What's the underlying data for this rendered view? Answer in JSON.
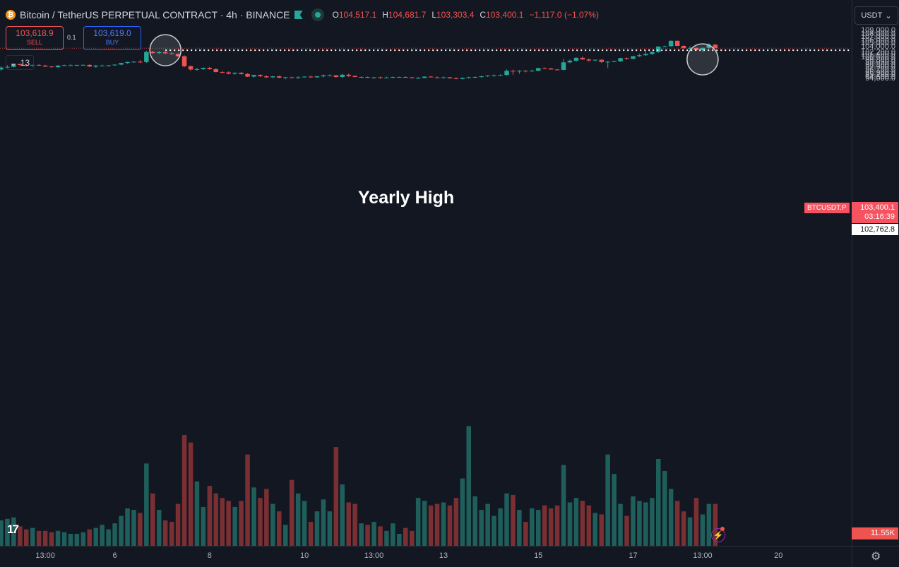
{
  "header": {
    "coin_symbol": "₿",
    "title": "Bitcoin / TetherUS PERPETUAL CONTRACT · 4h · BINANCE",
    "ohlc": [
      {
        "key": "O",
        "value": "104,517.1"
      },
      {
        "key": "H",
        "value": "104,681.7"
      },
      {
        "key": "L",
        "value": "103,303.4"
      },
      {
        "key": "C",
        "value": "103,400.1"
      }
    ],
    "change": "−1,117.0 (−1.07%)"
  },
  "trade": {
    "sell_price": "103,618.9",
    "sell_label": "SELL",
    "quantity": "0.1",
    "buy_price": "103,619.0",
    "buy_label": "BUY"
  },
  "indicators_toggle": {
    "chevron": "⌄",
    "count": "13"
  },
  "currency_select": {
    "label": "USDT",
    "chevron": "⌄"
  },
  "price_axis": {
    "ticks": [
      "109,000.0",
      "108,000.0",
      "107,000.0",
      "106,000.0",
      "105,000.0",
      "104,000.0",
      "102,200.0",
      "101,400.0",
      "100,600.0",
      "99,800.0",
      "99,050.0",
      "98,300.0",
      "97,500.0",
      "96,700.0",
      "95,900.0",
      "95,200.0",
      "94,600.0",
      "94,000.0"
    ],
    "last_price": "103,400.1",
    "countdown": "03:16:39",
    "symbol_tag": "BTCUSDT.P",
    "level_price": "102,762.8",
    "volume_value": "11.55K"
  },
  "time_axis": {
    "labels": [
      "13:00",
      "6",
      "8",
      "10",
      "13:00",
      "13",
      "15",
      "17",
      "13:00",
      "20"
    ]
  },
  "annotation": {
    "text": "Yearly High"
  },
  "logo": {
    "text": "17"
  },
  "icons": {
    "alert": "⚡",
    "settings": "⚙"
  },
  "colors": {
    "up": "#26a69a",
    "down": "#ef5350",
    "volume_up": "#1f5f5b",
    "volume_down": "#7a2f33",
    "background": "#131722"
  },
  "chart_data": {
    "type": "candlestick",
    "level_line": 102762.8,
    "last_price": 103400.1,
    "candles": [
      {
        "o": 96800,
        "h": 97800,
        "l": 96400,
        "c": 97400,
        "v": 1700
      },
      {
        "o": 97400,
        "h": 98100,
        "l": 97200,
        "c": 97600,
        "v": 1800
      },
      {
        "o": 97600,
        "h": 98600,
        "l": 97400,
        "c": 98500,
        "v": 1900
      },
      {
        "o": 98500,
        "h": 98600,
        "l": 97900,
        "c": 98200,
        "v": 1300
      },
      {
        "o": 98200,
        "h": 98400,
        "l": 97700,
        "c": 98100,
        "v": 1100
      },
      {
        "o": 98100,
        "h": 98300,
        "l": 97700,
        "c": 98200,
        "v": 1200
      },
      {
        "o": 98200,
        "h": 98400,
        "l": 97900,
        "c": 98000,
        "v": 1000
      },
      {
        "o": 98000,
        "h": 98200,
        "l": 97600,
        "c": 97700,
        "v": 1000
      },
      {
        "o": 97700,
        "h": 97900,
        "l": 97400,
        "c": 97500,
        "v": 900
      },
      {
        "o": 97500,
        "h": 98100,
        "l": 97300,
        "c": 98000,
        "v": 1000
      },
      {
        "o": 98000,
        "h": 98300,
        "l": 97800,
        "c": 98100,
        "v": 900
      },
      {
        "o": 98100,
        "h": 98500,
        "l": 97900,
        "c": 98100,
        "v": 800
      },
      {
        "o": 98100,
        "h": 98200,
        "l": 97800,
        "c": 98200,
        "v": 800
      },
      {
        "o": 98200,
        "h": 98400,
        "l": 98000,
        "c": 98200,
        "v": 900
      },
      {
        "o": 98200,
        "h": 98400,
        "l": 97500,
        "c": 97700,
        "v": 1100
      },
      {
        "o": 97700,
        "h": 98200,
        "l": 97300,
        "c": 98000,
        "v": 1200
      },
      {
        "o": 98000,
        "h": 98300,
        "l": 97800,
        "c": 98000,
        "v": 1400
      },
      {
        "o": 98000,
        "h": 98100,
        "l": 97700,
        "c": 98100,
        "v": 1100
      },
      {
        "o": 98100,
        "h": 98400,
        "l": 97900,
        "c": 98300,
        "v": 1500
      },
      {
        "o": 98300,
        "h": 98900,
        "l": 98100,
        "c": 98800,
        "v": 2000
      },
      {
        "o": 98800,
        "h": 99200,
        "l": 98600,
        "c": 99100,
        "v": 2500
      },
      {
        "o": 99100,
        "h": 99400,
        "l": 98900,
        "c": 99200,
        "v": 2400
      },
      {
        "o": 99200,
        "h": 99700,
        "l": 98800,
        "c": 99100,
        "v": 2200
      },
      {
        "o": 99100,
        "h": 102600,
        "l": 98800,
        "c": 102200,
        "v": 5500
      },
      {
        "o": 102200,
        "h": 102600,
        "l": 101600,
        "c": 101900,
        "v": 3500
      },
      {
        "o": 101900,
        "h": 102500,
        "l": 101600,
        "c": 102100,
        "v": 2400
      },
      {
        "o": 102100,
        "h": 102763,
        "l": 101600,
        "c": 101800,
        "v": 1700
      },
      {
        "o": 101800,
        "h": 102100,
        "l": 101400,
        "c": 101600,
        "v": 1600
      },
      {
        "o": 101600,
        "h": 101800,
        "l": 100700,
        "c": 100900,
        "v": 2800
      },
      {
        "o": 100900,
        "h": 101200,
        "l": 97500,
        "c": 97800,
        "v": 7400
      },
      {
        "o": 97800,
        "h": 98000,
        "l": 96400,
        "c": 96800,
        "v": 6900
      },
      {
        "o": 96800,
        "h": 97300,
        "l": 96400,
        "c": 96900,
        "v": 4300
      },
      {
        "o": 96900,
        "h": 97400,
        "l": 96600,
        "c": 97300,
        "v": 2600
      },
      {
        "o": 97300,
        "h": 97600,
        "l": 96700,
        "c": 96900,
        "v": 4000
      },
      {
        "o": 96900,
        "h": 97100,
        "l": 95900,
        "c": 96000,
        "v": 3500
      },
      {
        "o": 96000,
        "h": 96400,
        "l": 95600,
        "c": 95900,
        "v": 3200
      },
      {
        "o": 95900,
        "h": 96200,
        "l": 95300,
        "c": 95500,
        "v": 3000
      },
      {
        "o": 95500,
        "h": 95900,
        "l": 95200,
        "c": 95800,
        "v": 2600
      },
      {
        "o": 95800,
        "h": 96000,
        "l": 95200,
        "c": 95400,
        "v": 3000
      },
      {
        "o": 95400,
        "h": 95600,
        "l": 94500,
        "c": 94600,
        "v": 6100
      },
      {
        "o": 94600,
        "h": 95200,
        "l": 94300,
        "c": 95100,
        "v": 3900
      },
      {
        "o": 95100,
        "h": 95300,
        "l": 94500,
        "c": 94700,
        "v": 3200
      },
      {
        "o": 94700,
        "h": 95000,
        "l": 94200,
        "c": 94400,
        "v": 3800
      },
      {
        "o": 94400,
        "h": 94800,
        "l": 94100,
        "c": 94700,
        "v": 2800
      },
      {
        "o": 94700,
        "h": 94900,
        "l": 94100,
        "c": 94300,
        "v": 2300
      },
      {
        "o": 94300,
        "h": 94500,
        "l": 93800,
        "c": 94400,
        "v": 1400
      },
      {
        "o": 94400,
        "h": 94600,
        "l": 94100,
        "c": 94300,
        "v": 4400
      },
      {
        "o": 94300,
        "h": 94700,
        "l": 94000,
        "c": 94400,
        "v": 3500
      },
      {
        "o": 94400,
        "h": 94700,
        "l": 94300,
        "c": 94600,
        "v": 3000
      },
      {
        "o": 94600,
        "h": 94900,
        "l": 94200,
        "c": 94400,
        "v": 1600
      },
      {
        "o": 94400,
        "h": 94800,
        "l": 94200,
        "c": 94700,
        "v": 2300
      },
      {
        "o": 94700,
        "h": 95300,
        "l": 94300,
        "c": 95000,
        "v": 3100
      },
      {
        "o": 95000,
        "h": 95300,
        "l": 94800,
        "c": 95000,
        "v": 2300
      },
      {
        "o": 95000,
        "h": 95100,
        "l": 94300,
        "c": 94500,
        "v": 6600
      },
      {
        "o": 94500,
        "h": 95500,
        "l": 94200,
        "c": 95200,
        "v": 4100
      },
      {
        "o": 95200,
        "h": 95500,
        "l": 94500,
        "c": 94800,
        "v": 2900
      },
      {
        "o": 94800,
        "h": 95000,
        "l": 94400,
        "c": 94500,
        "v": 2800
      },
      {
        "o": 94500,
        "h": 94700,
        "l": 94200,
        "c": 94500,
        "v": 1500
      },
      {
        "o": 94500,
        "h": 94600,
        "l": 94200,
        "c": 94300,
        "v": 1400
      },
      {
        "o": 94300,
        "h": 94500,
        "l": 93900,
        "c": 94400,
        "v": 1600
      },
      {
        "o": 94400,
        "h": 94600,
        "l": 94000,
        "c": 94200,
        "v": 1300
      },
      {
        "o": 94200,
        "h": 94600,
        "l": 94200,
        "c": 94300,
        "v": 1000
      },
      {
        "o": 94300,
        "h": 94600,
        "l": 94100,
        "c": 94500,
        "v": 1500
      },
      {
        "o": 94500,
        "h": 94600,
        "l": 94300,
        "c": 94500,
        "v": 800
      },
      {
        "o": 94500,
        "h": 94700,
        "l": 94300,
        "c": 94400,
        "v": 1200
      },
      {
        "o": 94400,
        "h": 94500,
        "l": 94000,
        "c": 94200,
        "v": 1000
      },
      {
        "o": 94200,
        "h": 94500,
        "l": 94000,
        "c": 94200,
        "v": 3200
      },
      {
        "o": 94200,
        "h": 94700,
        "l": 94100,
        "c": 94600,
        "v": 3000
      },
      {
        "o": 94600,
        "h": 94800,
        "l": 94300,
        "c": 94400,
        "v": 2700
      },
      {
        "o": 94400,
        "h": 94600,
        "l": 94100,
        "c": 94300,
        "v": 2800
      },
      {
        "o": 94300,
        "h": 94600,
        "l": 94000,
        "c": 94400,
        "v": 2900
      },
      {
        "o": 94400,
        "h": 94500,
        "l": 94000,
        "c": 94100,
        "v": 2700
      },
      {
        "o": 94100,
        "h": 94400,
        "l": 93800,
        "c": 93900,
        "v": 3200
      },
      {
        "o": 93900,
        "h": 94400,
        "l": 93700,
        "c": 94200,
        "v": 4500
      },
      {
        "o": 94200,
        "h": 94600,
        "l": 94000,
        "c": 94400,
        "v": 8000
      },
      {
        "o": 94400,
        "h": 94700,
        "l": 94200,
        "c": 94500,
        "v": 3300
      },
      {
        "o": 94500,
        "h": 94900,
        "l": 94200,
        "c": 94700,
        "v": 2400
      },
      {
        "o": 94700,
        "h": 95000,
        "l": 94500,
        "c": 94900,
        "v": 2800
      },
      {
        "o": 94900,
        "h": 95300,
        "l": 94600,
        "c": 95000,
        "v": 2000
      },
      {
        "o": 95000,
        "h": 95300,
        "l": 94800,
        "c": 95100,
        "v": 2500
      },
      {
        "o": 95100,
        "h": 96800,
        "l": 94900,
        "c": 96400,
        "v": 3500
      },
      {
        "o": 96400,
        "h": 96700,
        "l": 95200,
        "c": 96300,
        "v": 3400
      },
      {
        "o": 96300,
        "h": 96600,
        "l": 95500,
        "c": 96400,
        "v": 2400
      },
      {
        "o": 96400,
        "h": 96600,
        "l": 95900,
        "c": 96300,
        "v": 1600
      },
      {
        "o": 96300,
        "h": 96700,
        "l": 96100,
        "c": 96400,
        "v": 2500
      },
      {
        "o": 96400,
        "h": 97300,
        "l": 96300,
        "c": 97200,
        "v": 2400
      },
      {
        "o": 97200,
        "h": 97400,
        "l": 96900,
        "c": 97100,
        "v": 2700
      },
      {
        "o": 97100,
        "h": 97300,
        "l": 96800,
        "c": 96800,
        "v": 2500
      },
      {
        "o": 96800,
        "h": 96900,
        "l": 96600,
        "c": 96700,
        "v": 2700
      },
      {
        "o": 96700,
        "h": 100100,
        "l": 96500,
        "c": 99000,
        "v": 5400
      },
      {
        "o": 99000,
        "h": 99900,
        "l": 98700,
        "c": 99500,
        "v": 2900
      },
      {
        "o": 99500,
        "h": 100600,
        "l": 99200,
        "c": 100400,
        "v": 3200
      },
      {
        "o": 100400,
        "h": 100800,
        "l": 99800,
        "c": 99900,
        "v": 3000
      },
      {
        "o": 99900,
        "h": 100200,
        "l": 99200,
        "c": 99600,
        "v": 2700
      },
      {
        "o": 99600,
        "h": 99900,
        "l": 99300,
        "c": 99800,
        "v": 2200
      },
      {
        "o": 99800,
        "h": 99900,
        "l": 98800,
        "c": 99100,
        "v": 2100
      },
      {
        "o": 99100,
        "h": 99400,
        "l": 97200,
        "c": 99200,
        "v": 6100
      },
      {
        "o": 99200,
        "h": 99600,
        "l": 99000,
        "c": 99300,
        "v": 4800
      },
      {
        "o": 99300,
        "h": 100400,
        "l": 99100,
        "c": 100300,
        "v": 2800
      },
      {
        "o": 100300,
        "h": 100500,
        "l": 99800,
        "c": 100100,
        "v": 2000
      },
      {
        "o": 100100,
        "h": 101000,
        "l": 99900,
        "c": 100900,
        "v": 3300
      },
      {
        "o": 100900,
        "h": 101600,
        "l": 100700,
        "c": 101200,
        "v": 3000
      },
      {
        "o": 101200,
        "h": 102600,
        "l": 101000,
        "c": 101600,
        "v": 2900
      },
      {
        "o": 101600,
        "h": 102400,
        "l": 101300,
        "c": 102200,
        "v": 3200
      },
      {
        "o": 102200,
        "h": 104000,
        "l": 102000,
        "c": 103900,
        "v": 5800
      },
      {
        "o": 103900,
        "h": 104200,
        "l": 103700,
        "c": 104000,
        "v": 5000
      },
      {
        "o": 104000,
        "h": 105800,
        "l": 103800,
        "c": 105700,
        "v": 3800
      },
      {
        "o": 105700,
        "h": 105800,
        "l": 104000,
        "c": 104100,
        "v": 3000
      },
      {
        "o": 104100,
        "h": 104300,
        "l": 103300,
        "c": 103400,
        "v": 2300
      },
      {
        "o": 103400,
        "h": 104000,
        "l": 102800,
        "c": 103500,
        "v": 1900
      },
      {
        "o": 103500,
        "h": 103600,
        "l": 102600,
        "c": 102800,
        "v": 3200
      },
      {
        "o": 102800,
        "h": 103600,
        "l": 102200,
        "c": 103500,
        "v": 2100
      },
      {
        "o": 103500,
        "h": 104900,
        "l": 103300,
        "c": 104500,
        "v": 2800
      },
      {
        "o": 104500,
        "h": 104700,
        "l": 103300,
        "c": 103400,
        "v": 2800
      }
    ]
  }
}
